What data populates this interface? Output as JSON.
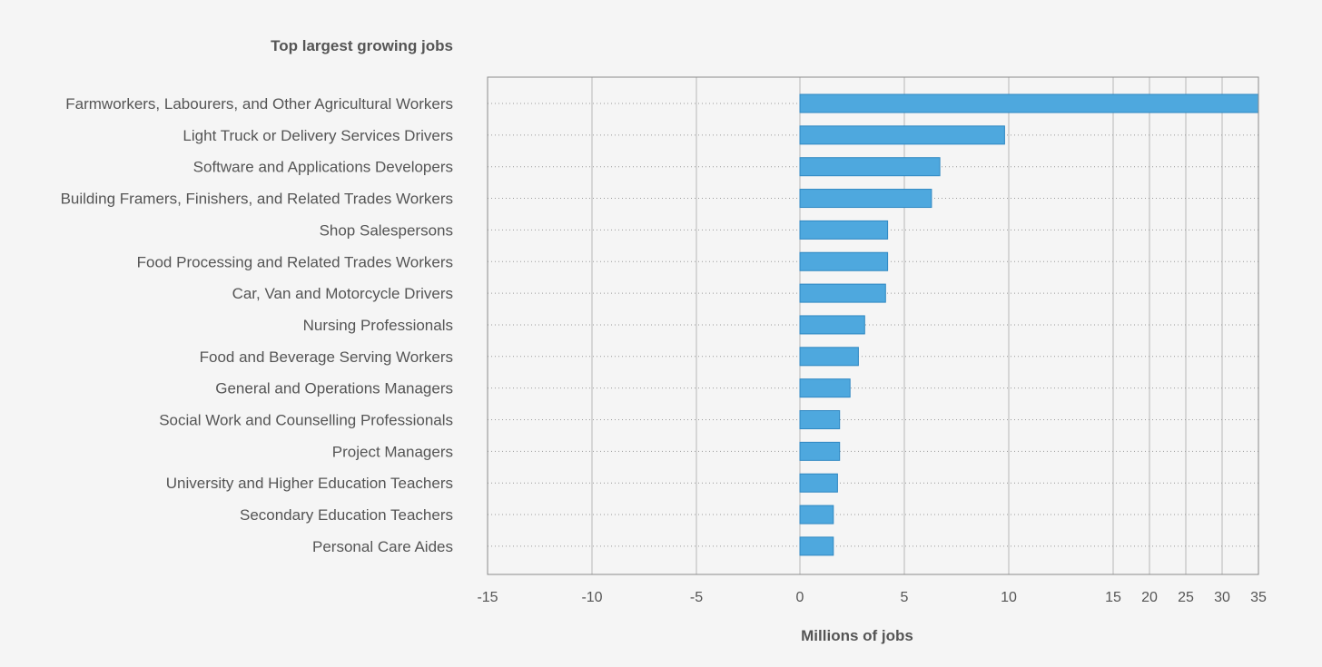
{
  "chart_data": {
    "type": "bar",
    "orientation": "horizontal",
    "title": "Top largest growing jobs",
    "xlabel": "Millions of jobs",
    "categories": [
      "Farmworkers, Labourers, and Other Agricultural Workers",
      "Light Truck or Delivery Services Drivers",
      "Software and Applications Developers",
      "Building Framers, Finishers, and Related Trades Workers",
      "Shop Salespersons",
      "Food Processing and Related Trades Workers",
      "Car, Van and Motorcycle Drivers",
      "Nursing Professionals",
      "Food and Beverage Serving Workers",
      "General and Operations Managers",
      "Social Work and Counselling Professionals",
      "Project Managers",
      "University and Higher Education Teachers",
      "Secondary Education Teachers",
      "Personal Care Aides"
    ],
    "values": [
      35,
      9.8,
      6.7,
      6.3,
      4.2,
      4.2,
      4.1,
      3.1,
      2.8,
      2.4,
      1.9,
      1.9,
      1.8,
      1.6,
      1.6
    ],
    "xticks": [
      "-15",
      "-10",
      "-5",
      "0",
      "5",
      "10",
      "15",
      "20",
      "25",
      "30",
      "35"
    ],
    "xlim": [
      -15,
      35
    ],
    "grid": true,
    "bar_color": "#4ea8de",
    "bar_edge_color": "#2f88c2"
  }
}
